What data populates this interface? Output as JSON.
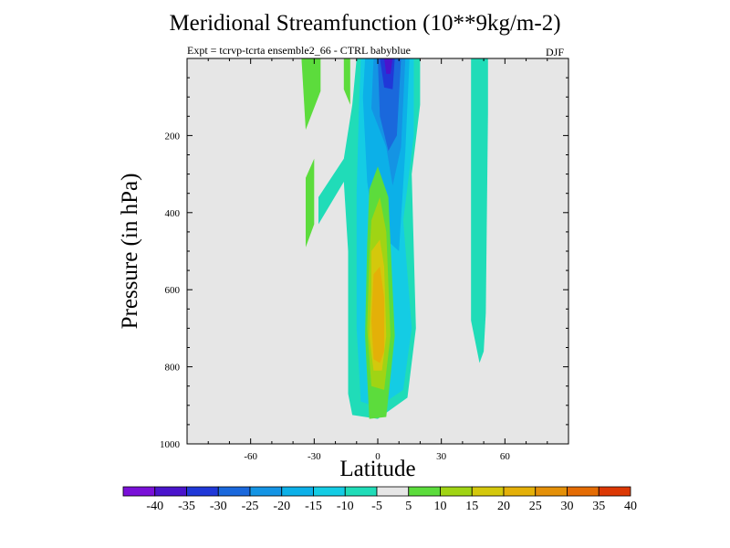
{
  "figure": {
    "title": "Meridional Streamfunction (10**9kg/m-2)",
    "subtitle": "Expt = tcrvp-tcrta  ensemble2_66 - CTRL babyblue",
    "season": "DJF"
  },
  "chart_data": {
    "type": "contour-filled",
    "title": "Meridional Streamfunction (10**9kg/m-2)",
    "xlabel": "Latitude",
    "ylabel": "Pressure (in hPa)",
    "xlim": [
      -90,
      90
    ],
    "ylim": [
      1000,
      0
    ],
    "x_ticks": [
      -60,
      -30,
      0,
      30,
      60
    ],
    "x_tick_labels": [
      "-60",
      "-30",
      "0",
      "30",
      "60"
    ],
    "y_ticks": [
      200,
      400,
      600,
      800,
      1000
    ],
    "y_tick_labels": [
      "200",
      "400",
      "600",
      "800",
      "1000"
    ],
    "background_color": "#e6e6e6",
    "colorbar": {
      "labels": [
        "-40",
        "-35",
        "-30",
        "-25",
        "-20",
        "-15",
        "-10",
        "-5",
        "5",
        "10",
        "15",
        "20",
        "25",
        "30",
        "35",
        "40"
      ],
      "colors": [
        "#7a10d8",
        "#4a14cc",
        "#2038d8",
        "#1a68dc",
        "#1494e4",
        "#0cb0e8",
        "#14cce4",
        "#20dcb8",
        "#e6e6e6",
        "#5cdc3c",
        "#a0d414",
        "#d4c80c",
        "#e4b008",
        "#e49008",
        "#e46c04",
        "#dc3804"
      ]
    },
    "regions": [
      {
        "level": "5 to 10",
        "color": "#5cdc3c",
        "points": [
          [
            -33,
            0
          ],
          [
            -27,
            0
          ],
          [
            -27,
            85
          ],
          [
            -34,
            185
          ],
          [
            -36,
            0
          ]
        ]
      },
      {
        "level": "5 to 10",
        "color": "#5cdc3c",
        "points": [
          [
            -16,
            0
          ],
          [
            -13,
            0
          ],
          [
            -13,
            120
          ],
          [
            -16,
            80
          ]
        ]
      },
      {
        "level": "5 to 10",
        "color": "#5cdc3c",
        "points": [
          [
            -34,
            310
          ],
          [
            -30,
            260
          ],
          [
            -30,
            430
          ],
          [
            -34,
            490
          ]
        ]
      },
      {
        "level": "-10 to -5",
        "color": "#20dcb8",
        "points": [
          [
            -10,
            0
          ],
          [
            20,
            0
          ],
          [
            20,
            120
          ],
          [
            16,
            300
          ],
          [
            18,
            700
          ],
          [
            14,
            880
          ],
          [
            0,
            935
          ],
          [
            -12,
            925
          ],
          [
            -14,
            870
          ],
          [
            -14,
            500
          ],
          [
            -16,
            320
          ],
          [
            -28,
            430
          ],
          [
            -28,
            360
          ],
          [
            -16,
            260
          ],
          [
            -12,
            120
          ]
        ]
      },
      {
        "level": "-15 to -10",
        "color": "#14cce4",
        "points": [
          [
            -8,
            0
          ],
          [
            17,
            0
          ],
          [
            17,
            200
          ],
          [
            12,
            420
          ],
          [
            16,
            700
          ],
          [
            12,
            860
          ],
          [
            0,
            905
          ],
          [
            -8,
            890
          ],
          [
            -10,
            700
          ],
          [
            -10,
            350
          ],
          [
            -9,
            150
          ]
        ]
      },
      {
        "level": "-20 to -15",
        "color": "#0cb0e8",
        "points": [
          [
            -6,
            0
          ],
          [
            15,
            0
          ],
          [
            13,
            240
          ],
          [
            10,
            500
          ],
          [
            -2,
            440
          ],
          [
            -5,
            320
          ],
          [
            -7,
            100
          ]
        ]
      },
      {
        "level": "-25 to -20",
        "color": "#1494e4",
        "points": [
          [
            -2,
            0
          ],
          [
            13,
            0
          ],
          [
            11,
            230
          ],
          [
            7,
            330
          ],
          [
            4,
            230
          ],
          [
            -3,
            130
          ]
        ]
      },
      {
        "level": "-30 to -25",
        "color": "#1a68dc",
        "points": [
          [
            0,
            0
          ],
          [
            11,
            0
          ],
          [
            9,
            200
          ],
          [
            5,
            240
          ],
          [
            1,
            150
          ]
        ]
      },
      {
        "level": "-35 to -30",
        "color": "#2038d8",
        "points": [
          [
            1,
            0
          ],
          [
            8,
            0
          ],
          [
            7,
            80
          ],
          [
            3,
            75
          ]
        ]
      },
      {
        "level": "-40 to -35",
        "color": "#4a14cc",
        "points": [
          [
            3,
            0
          ],
          [
            7,
            0
          ],
          [
            6,
            40
          ],
          [
            4,
            40
          ]
        ]
      },
      {
        "level": "5 to 10",
        "color": "#5cdc3c",
        "points": [
          [
            -4,
            340
          ],
          [
            0,
            280
          ],
          [
            5,
            360
          ],
          [
            8,
            720
          ],
          [
            4,
            930
          ],
          [
            -4,
            935
          ],
          [
            -6,
            720
          ],
          [
            -5,
            480
          ]
        ]
      },
      {
        "level": "10 to 15",
        "color": "#a0d414",
        "points": [
          [
            -3,
            420
          ],
          [
            1,
            360
          ],
          [
            4,
            450
          ],
          [
            6,
            720
          ],
          [
            3,
            860
          ],
          [
            -3,
            850
          ],
          [
            -5,
            700
          ],
          [
            -4,
            520
          ]
        ]
      },
      {
        "level": "15 to 20",
        "color": "#d4c80c",
        "points": [
          [
            -3,
            500
          ],
          [
            1,
            470
          ],
          [
            3,
            540
          ],
          [
            4,
            720
          ],
          [
            2,
            810
          ],
          [
            -2,
            810
          ],
          [
            -4,
            720
          ],
          [
            -3,
            600
          ]
        ]
      },
      {
        "level": "20 to 25",
        "color": "#e4b008",
        "points": [
          [
            -2,
            560
          ],
          [
            1,
            540
          ],
          [
            3,
            620
          ],
          [
            3,
            760
          ],
          [
            1,
            790
          ],
          [
            -2,
            780
          ],
          [
            -3,
            680
          ]
        ]
      },
      {
        "level": "-10 to -5",
        "color": "#20dcb8",
        "points": [
          [
            44,
            0
          ],
          [
            52,
            0
          ],
          [
            52,
            140
          ],
          [
            51,
            660
          ],
          [
            50,
            760
          ],
          [
            48,
            790
          ],
          [
            44,
            680
          ],
          [
            44,
            300
          ]
        ]
      }
    ]
  }
}
